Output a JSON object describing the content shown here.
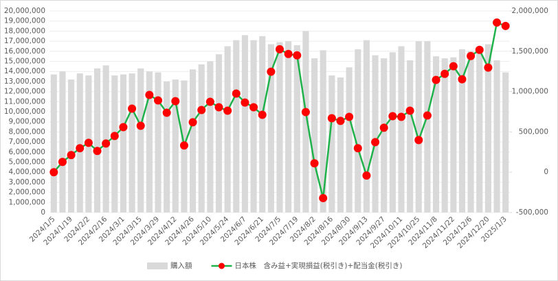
{
  "chart_data": {
    "type": "bar-line",
    "categories": [
      "2024/1/5",
      null,
      "2024/1/19",
      null,
      "2024/2/2",
      null,
      "2024/2/16",
      null,
      "2024/3/1",
      null,
      "2024/3/15",
      null,
      "2024/3/29",
      null,
      "2024/4/12",
      null,
      "2024/4/26",
      null,
      "2024/5/10",
      null,
      "2024/5/24",
      null,
      "2024/6/7",
      null,
      "2024/6/21",
      null,
      "2024/7/5",
      null,
      "2024/7/19",
      null,
      "2024/8/2",
      null,
      "2024/8/16",
      null,
      "2024/8/30",
      null,
      "2024/9/13",
      null,
      "2024/9/27",
      null,
      "2024/10/11",
      null,
      "2024/10/25",
      null,
      "2024/11/8",
      null,
      "2024/11/22",
      null,
      "2024/12/6",
      null,
      "2024/12/20",
      null,
      "2025/1/3"
    ],
    "series": [
      {
        "name": "購入額",
        "color": "#d9d9d9",
        "type": "bar",
        "values": [
          13700000,
          14000000,
          13200000,
          13800000,
          13600000,
          14300000,
          14600000,
          13600000,
          13700000,
          13800000,
          14300000,
          14000000,
          13900000,
          13000000,
          13200000,
          13100000,
          14200000,
          14700000,
          15000000,
          15700000,
          16500000,
          17100000,
          17600000,
          17100000,
          17500000,
          16700000,
          16900000,
          17000000,
          16600000,
          18000000,
          15300000,
          16100000,
          13600000,
          13400000,
          14400000,
          16200000,
          17100000,
          15600000,
          15300000,
          15900000,
          16500000,
          15100000,
          17000000,
          17000000,
          15500000,
          15300000,
          15400000,
          16200000,
          16000000,
          16300000,
          16700000,
          15100000,
          13900000
        ]
      },
      {
        "name": "日本株　含み益+実現損益(税引き)+配当金(税引き)",
        "color": "#1fb24a",
        "marker_color": "#ff0000",
        "type": "line",
        "axis": "y2",
        "values": [
          0,
          127000,
          212000,
          297000,
          364000,
          263000,
          356000,
          449000,
          559000,
          788000,
          576000,
          958000,
          890000,
          737000,
          881000,
          331000,
          619000,
          771000,
          873000,
          805000,
          763000,
          975000,
          864000,
          805000,
          712000,
          1246000,
          1525000,
          1466000,
          1449000,
          746000,
          110000,
          -322000,
          669000,
          636000,
          686000,
          297000,
          -42000,
          373000,
          551000,
          695000,
          686000,
          763000,
          398000,
          703000,
          1144000,
          1220000,
          1314000,
          1153000,
          1441000,
          1517000,
          1297000,
          1856000,
          1814000
        ]
      }
    ],
    "ylim": [
      0,
      20000000
    ],
    "yticks": [
      0,
      {
        "value": 1000000,
        "label": "1,000,000"
      },
      {
        "value": 2000000,
        "label": "2,000,000"
      },
      {
        "value": 3000000,
        "label": "3,000,000"
      },
      {
        "value": 4000000,
        "label": "4,000,000"
      },
      {
        "value": 5000000,
        "label": "5,000,000"
      },
      {
        "value": 6000000,
        "label": "6,000,000"
      },
      {
        "value": 7000000,
        "label": "7,000,000"
      },
      {
        "value": 8000000,
        "label": "8,000,000"
      },
      {
        "value": 9000000,
        "label": "9,000,000"
      },
      {
        "value": 10000000,
        "label": "10,000,000"
      },
      {
        "value": 11000000,
        "label": "11,000,000"
      },
      {
        "value": 12000000,
        "label": "12,000,000"
      },
      {
        "value": 13000000,
        "label": "13,000,000"
      },
      {
        "value": 14000000,
        "label": "14,000,000"
      },
      {
        "value": 15000000,
        "label": "15,000,000"
      },
      {
        "value": 16000000,
        "label": "16,000,000"
      },
      {
        "value": 17000000,
        "label": "17,000,000"
      },
      {
        "value": 18000000,
        "label": "18,000,000"
      },
      {
        "value": 19000000,
        "label": "19,000,000"
      },
      {
        "value": 20000000,
        "label": "20,000,000"
      }
    ],
    "y2lim": [
      -500000,
      2000000
    ],
    "y2ticks": [
      {
        "value": -500000,
        "label": "-500,000"
      },
      0,
      {
        "value": 500000,
        "label": "500,000"
      },
      {
        "value": 1000000,
        "label": "1,000,000"
      },
      {
        "value": 1500000,
        "label": "1,500,000"
      },
      {
        "value": 2000000,
        "label": "2,000,000"
      }
    ],
    "legend": "bottom"
  }
}
